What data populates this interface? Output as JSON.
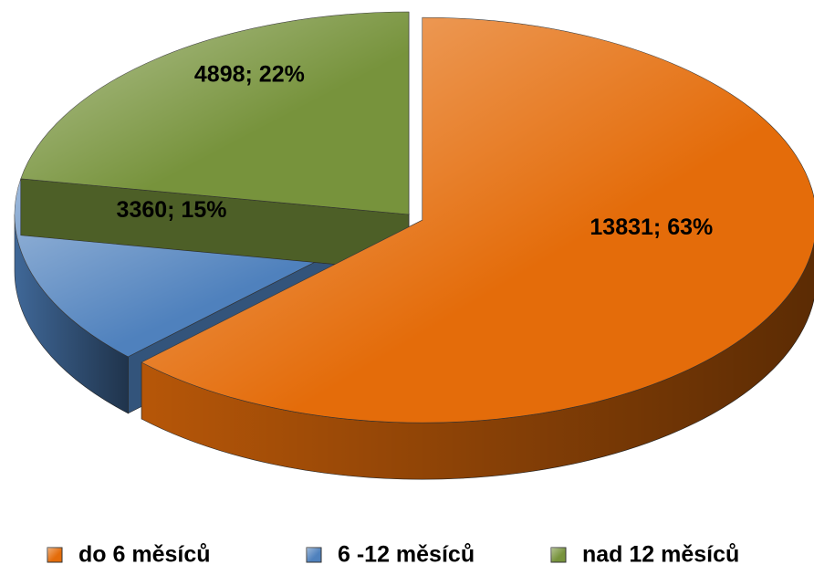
{
  "chart_data": {
    "type": "pie3d",
    "categories": [
      "do 6 měsíců",
      "6 -12 měsíců",
      "nad 12 měsíců"
    ],
    "values": [
      13831,
      3360,
      4898
    ],
    "value_labels": [
      "13831; 63%",
      "3360; 15%",
      "4898; 22%"
    ],
    "colors": [
      "#e46c0a",
      "#4f81bd",
      "#77933c"
    ],
    "legend": "bottom"
  }
}
